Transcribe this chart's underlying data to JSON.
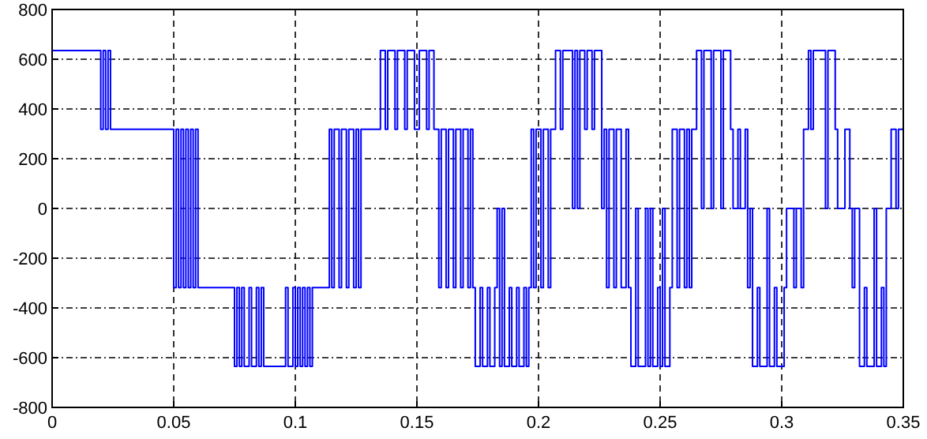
{
  "chart_data": {
    "type": "step",
    "xlim": [
      0,
      0.35
    ],
    "ylim": [
      -800,
      800
    ],
    "xticks": [
      0,
      0.05,
      0.1,
      0.15,
      0.2,
      0.25,
      0.3,
      0.35
    ],
    "yticks": [
      -800,
      -600,
      -400,
      -200,
      0,
      200,
      400,
      600,
      800
    ],
    "grid": true,
    "line_style": "solid",
    "series": [
      {
        "color": "#0000ff",
        "x": [
          0,
          0.02,
          0.021,
          0.022,
          0.023,
          0.024,
          0.05,
          0.051,
          0.052,
          0.053,
          0.054,
          0.055,
          0.056,
          0.057,
          0.058,
          0.059,
          0.06,
          0.075,
          0.076,
          0.077,
          0.078,
          0.079,
          0.081,
          0.082,
          0.084,
          0.085,
          0.086,
          0.087,
          0.096,
          0.097,
          0.099,
          0.1,
          0.101,
          0.102,
          0.103,
          0.104,
          0.105,
          0.106,
          0.107,
          0.114,
          0.115,
          0.116,
          0.118,
          0.119,
          0.121,
          0.122,
          0.124,
          0.125,
          0.126,
          0.127,
          0.135,
          0.137,
          0.138,
          0.141,
          0.142,
          0.145,
          0.146,
          0.149,
          0.151,
          0.154,
          0.155,
          0.157,
          0.159,
          0.16,
          0.162,
          0.163,
          0.165,
          0.166,
          0.168,
          0.169,
          0.171,
          0.172,
          0.173,
          0.174,
          0.176,
          0.177,
          0.179,
          0.18,
          0.182,
          0.183,
          0.184,
          0.185,
          0.186,
          0.188,
          0.189,
          0.191,
          0.192,
          0.194,
          0.195,
          0.196,
          0.197,
          0.198,
          0.199,
          0.201,
          0.202,
          0.204,
          0.205,
          0.207,
          0.209,
          0.21,
          0.214,
          0.215,
          0.216,
          0.217,
          0.219,
          0.22,
          0.222,
          0.223,
          0.226,
          0.227,
          0.228,
          0.229,
          0.231,
          0.232,
          0.234,
          0.236,
          0.237,
          0.238,
          0.24,
          0.241,
          0.244,
          0.245,
          0.246,
          0.247,
          0.249,
          0.25,
          0.251,
          0.252,
          0.254,
          0.255,
          0.257,
          0.258,
          0.26,
          0.261,
          0.262,
          0.263,
          0.265,
          0.267,
          0.268,
          0.271,
          0.272,
          0.275,
          0.276,
          0.279,
          0.28,
          0.282,
          0.283,
          0.285,
          0.286,
          0.287,
          0.288,
          0.29,
          0.291,
          0.294,
          0.295,
          0.297,
          0.298,
          0.301,
          0.302,
          0.305,
          0.306,
          0.308,
          0.309,
          0.311,
          0.312,
          0.313,
          0.318,
          0.319,
          0.322,
          0.323,
          0.326,
          0.328,
          0.329,
          0.33,
          0.332,
          0.334,
          0.335,
          0.338,
          0.339,
          0.341,
          0.342,
          0.343,
          0.345,
          0.347,
          0.348,
          0.35
        ],
        "values": [
          635,
          318,
          635,
          318,
          635,
          318,
          -318,
          318,
          -318,
          318,
          -318,
          318,
          -318,
          318,
          -318,
          318,
          -318,
          -635,
          -318,
          -635,
          -318,
          -635,
          -318,
          -635,
          -318,
          -635,
          -318,
          -635,
          -318,
          -635,
          -318,
          -635,
          -318,
          -635,
          -318,
          -635,
          -318,
          -635,
          -318,
          318,
          -318,
          318,
          -318,
          318,
          -318,
          318,
          -318,
          318,
          -318,
          318,
          635,
          318,
          635,
          318,
          635,
          318,
          635,
          318,
          635,
          318,
          635,
          318,
          -318,
          318,
          -318,
          318,
          -318,
          318,
          -318,
          318,
          -318,
          318,
          -318,
          -635,
          -318,
          -635,
          -318,
          -635,
          -318,
          0,
          -635,
          0,
          -635,
          -318,
          -635,
          -318,
          -635,
          -318,
          -635,
          -318,
          318,
          -318,
          318,
          -318,
          318,
          -318,
          318,
          635,
          318,
          635,
          0,
          635,
          0,
          635,
          318,
          635,
          318,
          635,
          0,
          318,
          -318,
          318,
          -318,
          318,
          -318,
          318,
          -318,
          -635,
          0,
          -635,
          0,
          -635,
          0,
          -635,
          -318,
          -635,
          0,
          -635,
          -318,
          318,
          -318,
          318,
          -318,
          318,
          -318,
          318,
          635,
          0,
          635,
          0,
          635,
          0,
          635,
          318,
          0,
          318,
          0,
          318,
          -318,
          0,
          -635,
          -318,
          -635,
          0,
          -635,
          -318,
          -635,
          -318,
          0,
          -318,
          0,
          -318,
          318,
          635,
          318,
          635,
          0,
          635,
          318,
          0,
          318,
          0,
          -318,
          0,
          -635,
          -318,
          -635,
          0,
          -635,
          -318,
          -635,
          0,
          318,
          0,
          318,
          318
        ]
      }
    ]
  }
}
